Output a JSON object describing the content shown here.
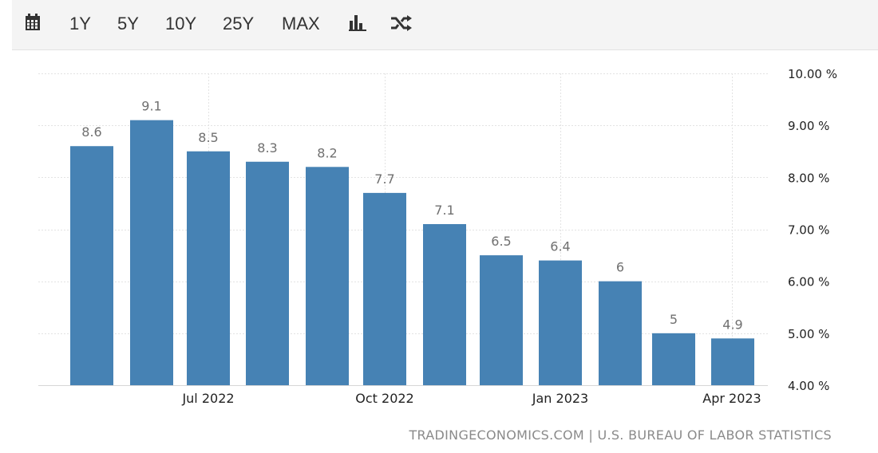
{
  "toolbar": {
    "icons": {
      "calendar": "calendar-icon",
      "bar_chart": "bar-chart-icon",
      "shuffle": "shuffle-icon"
    },
    "ranges": [
      "1Y",
      "5Y",
      "10Y",
      "25Y",
      "MAX"
    ]
  },
  "chart_data": {
    "type": "bar",
    "series_color": "#4682b4",
    "values": [
      8.6,
      9.1,
      8.5,
      8.3,
      8.2,
      7.7,
      7.1,
      6.5,
      6.4,
      6,
      5,
      4.9
    ],
    "value_labels": [
      "8.6",
      "9.1",
      "8.5",
      "8.3",
      "8.2",
      "7.7",
      "7.1",
      "6.5",
      "6.4",
      "6",
      "5",
      "4.9"
    ],
    "x_ticks": [
      "Jul 2022",
      "Oct 2022",
      "Jan 2023",
      "Apr 2023"
    ],
    "y_ticks": [
      "10.00 %",
      "9.00 %",
      "8.00 %",
      "7.00 %",
      "6.00 %",
      "5.00 %",
      "4.00 %"
    ],
    "ylim": [
      4,
      10
    ],
    "grid": true,
    "y_axis_position": "right"
  },
  "source": "TRADINGECONOMICS.COM | U.S. BUREAU OF LABOR STATISTICS"
}
